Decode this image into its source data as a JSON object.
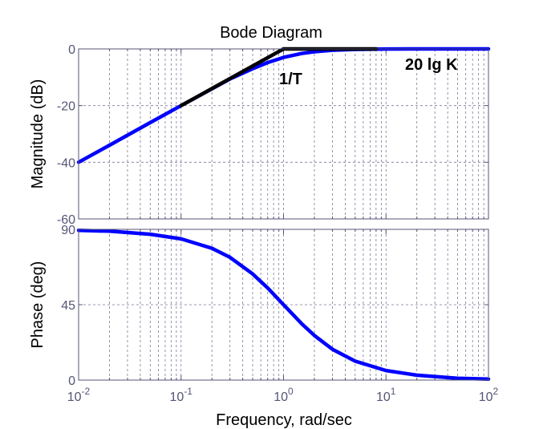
{
  "chart_data": [
    {
      "type": "line",
      "title": "Bode Diagram",
      "ylabel": "Magnitude (dB)",
      "xscale": "log",
      "xlim": [
        0.01,
        100
      ],
      "ylim": [
        -60,
        0
      ],
      "grid": true,
      "x_ticks": [
        "10-2",
        "10-1",
        "100",
        "101",
        "102"
      ],
      "y_ticks": [
        "0",
        "-20",
        "-40",
        "-60"
      ],
      "series": [
        {
          "color": "#0000ff",
          "x": [
            0.01,
            0.02,
            0.05,
            0.1,
            0.2,
            0.3,
            0.5,
            0.7,
            1,
            1.5,
            2,
            3,
            5,
            10,
            20,
            50,
            100
          ],
          "y": [
            -40,
            -34,
            -26.0,
            -20.0,
            -14.1,
            -10.6,
            -7.0,
            -4.8,
            -3.0,
            -1.6,
            -1.0,
            -0.46,
            -0.17,
            -0.04,
            -0.01,
            0,
            0
          ]
        },
        {
          "color": "#000000",
          "x": [
            0.1,
            1,
            8
          ],
          "y": [
            -20,
            0,
            0
          ]
        }
      ],
      "annotations": [
        {
          "text": "1/T"
        },
        {
          "text": "20 lg K"
        }
      ]
    },
    {
      "type": "line",
      "ylabel": "Phase (deg)",
      "xlabel": "Frequency, rad/sec",
      "xscale": "log",
      "xlim": [
        0.01,
        100
      ],
      "ylim": [
        0,
        90
      ],
      "grid": true,
      "y_ticks": [
        "90",
        "45",
        "0"
      ],
      "series": [
        {
          "color": "#0000ff",
          "x": [
            0.01,
            0.02,
            0.05,
            0.1,
            0.2,
            0.3,
            0.5,
            0.7,
            1,
            1.5,
            2,
            3,
            5,
            10,
            20,
            50,
            100
          ],
          "y": [
            89.4,
            88.9,
            87.1,
            84.3,
            78.7,
            73.3,
            63.4,
            55.0,
            45.0,
            33.7,
            26.6,
            18.4,
            11.3,
            5.7,
            2.9,
            1.1,
            0.6
          ]
        }
      ]
    }
  ]
}
